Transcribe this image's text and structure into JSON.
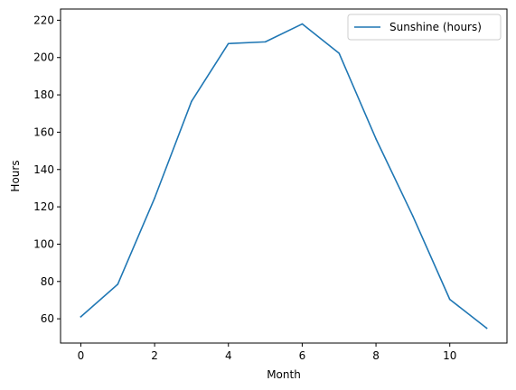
{
  "chart_data": {
    "type": "line",
    "title": "",
    "xlabel": "Month",
    "ylabel": "Hours",
    "x": [
      0,
      1,
      2,
      3,
      4,
      5,
      6,
      7,
      8,
      9,
      10,
      11
    ],
    "series": [
      {
        "name": "Sunshine (hours)",
        "color": "#1f77b4",
        "values": [
          61.1,
          78.5,
          124.7,
          176.5,
          207.5,
          208.4,
          218.0,
          202.3,
          156.4,
          115.0,
          70.4,
          55.0
        ]
      }
    ],
    "xlim": [
      -0.55,
      11.55
    ],
    "ylim": [
      47.0,
      226.0
    ],
    "xticks": [
      0,
      2,
      4,
      6,
      8,
      10
    ],
    "yticks": [
      60,
      80,
      100,
      120,
      140,
      160,
      180,
      200,
      220
    ],
    "grid": false,
    "legend_position": "upper right"
  }
}
